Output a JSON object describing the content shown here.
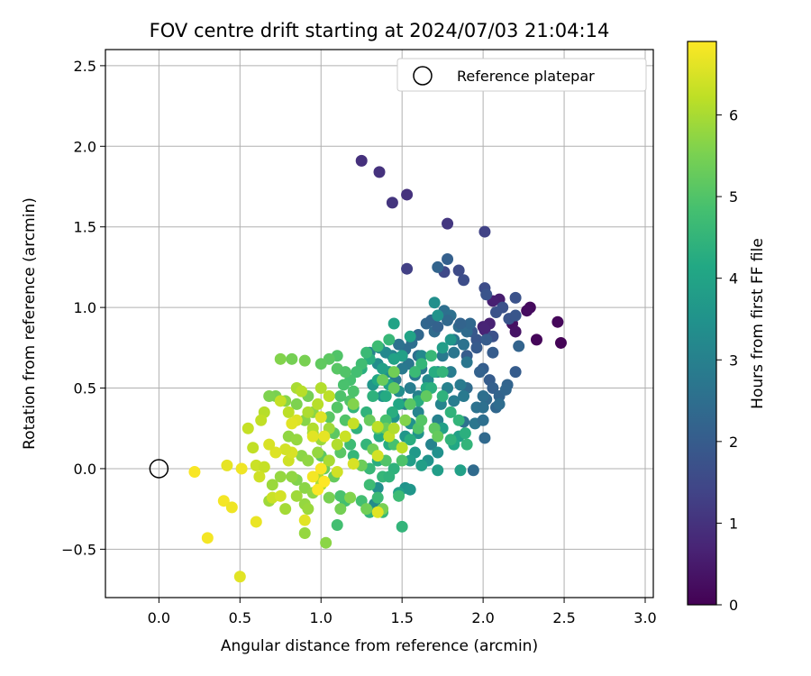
{
  "chart_data": {
    "type": "scatter",
    "title": "FOV centre drift starting at 2024/07/03 21:04:14",
    "xlabel": "Angular distance from reference (arcmin)",
    "ylabel": "Rotation from reference (arcmin)",
    "xlim": [
      -0.33,
      3.05
    ],
    "ylim": [
      -0.8,
      2.6
    ],
    "x_ticks": [
      0.0,
      0.5,
      1.0,
      1.5,
      2.0,
      2.5,
      3.0
    ],
    "x_tick_labels": [
      "0.0",
      "0.5",
      "1.0",
      "1.5",
      "2.0",
      "2.5",
      "3.0"
    ],
    "y_ticks": [
      -0.5,
      0.0,
      0.5,
      1.0,
      1.5,
      2.0,
      2.5
    ],
    "y_tick_labels": [
      "−0.5",
      "0.0",
      "0.5",
      "1.0",
      "1.5",
      "2.0",
      "2.5"
    ],
    "grid": true,
    "legend": {
      "placement": "top-right",
      "entries": [
        {
          "label": "Reference platepar",
          "marker": "open-circle"
        }
      ]
    },
    "reference_point": {
      "x": 0.0,
      "y": 0.0
    },
    "colorbar": {
      "label": "Hours from first FF file",
      "range": [
        0,
        6.9
      ],
      "ticks": [
        0,
        1,
        2,
        3,
        4,
        5,
        6
      ],
      "tick_labels": [
        "0",
        "1",
        "2",
        "3",
        "4",
        "5",
        "6"
      ],
      "colormap": "viridis"
    },
    "points": [
      [
        2.48,
        0.78,
        0.05
      ],
      [
        2.33,
        0.8,
        0.1
      ],
      [
        2.46,
        0.91,
        0.12
      ],
      [
        2.29,
        1.0,
        0.18
      ],
      [
        2.27,
        0.98,
        0.22
      ],
      [
        2.18,
        0.9,
        0.3
      ],
      [
        2.2,
        0.85,
        0.35
      ],
      [
        2.1,
        1.05,
        0.55
      ],
      [
        2.06,
        1.04,
        0.6
      ],
      [
        2.04,
        0.9,
        0.65
      ],
      [
        2.0,
        0.88,
        0.7
      ],
      [
        2.01,
        0.86,
        0.72
      ],
      [
        1.25,
        1.91,
        0.95
      ],
      [
        1.36,
        1.84,
        1.0
      ],
      [
        1.53,
        1.7,
        1.0
      ],
      [
        1.44,
        1.65,
        1.05
      ],
      [
        1.78,
        1.52,
        1.1
      ],
      [
        1.53,
        1.24,
        1.3
      ],
      [
        2.01,
        1.47,
        1.35
      ],
      [
        1.76,
        1.22,
        1.5
      ],
      [
        1.85,
        1.23,
        1.55
      ],
      [
        1.88,
        1.17,
        1.6
      ],
      [
        2.01,
        1.12,
        1.6
      ],
      [
        2.12,
        1.0,
        1.7
      ],
      [
        2.2,
        1.06,
        1.75
      ],
      [
        2.02,
        1.08,
        1.8
      ],
      [
        2.08,
        0.97,
        1.75
      ],
      [
        2.16,
        0.93,
        1.8
      ],
      [
        2.2,
        0.95,
        1.85
      ],
      [
        2.06,
        0.82,
        1.7
      ],
      [
        1.96,
        0.8,
        1.85
      ],
      [
        1.93,
        0.85,
        1.9
      ],
      [
        2.02,
        0.8,
        2.0
      ],
      [
        1.96,
        0.75,
        1.95
      ],
      [
        2.06,
        0.72,
        2.0
      ],
      [
        1.9,
        0.7,
        2.0
      ],
      [
        2.0,
        0.62,
        2.05
      ],
      [
        2.04,
        0.55,
        2.0
      ],
      [
        2.06,
        0.5,
        2.1
      ],
      [
        2.2,
        0.6,
        2.0
      ],
      [
        2.1,
        0.45,
        2.2
      ],
      [
        2.15,
        0.52,
        2.2
      ],
      [
        2.08,
        0.38,
        2.3
      ],
      [
        2.02,
        0.43,
        2.35
      ],
      [
        2.22,
        0.76,
        2.2
      ],
      [
        2.14,
        0.49,
        2.25
      ],
      [
        1.98,
        0.6,
        2.15
      ],
      [
        2.0,
        0.45,
        2.5
      ],
      [
        1.9,
        0.5,
        2.4
      ],
      [
        1.96,
        0.38,
        2.6
      ],
      [
        1.95,
        0.28,
        2.7
      ],
      [
        1.88,
        0.29,
        2.6
      ],
      [
        2.0,
        0.3,
        2.5
      ],
      [
        1.94,
        -0.01,
        2.4
      ],
      [
        2.01,
        0.19,
        2.35
      ],
      [
        2.0,
        0.38,
        2.55
      ],
      [
        2.1,
        0.4,
        2.45
      ],
      [
        1.78,
        1.3,
        2.1
      ],
      [
        1.72,
        1.25,
        2.2
      ],
      [
        1.65,
        0.9,
        2.25
      ],
      [
        1.6,
        0.83,
        2.3
      ],
      [
        1.68,
        0.92,
        2.2
      ],
      [
        1.7,
        0.85,
        2.4
      ],
      [
        1.56,
        0.78,
        2.5
      ],
      [
        1.6,
        0.7,
        2.55
      ],
      [
        1.52,
        0.74,
        2.45
      ],
      [
        1.48,
        0.77,
        2.6
      ],
      [
        1.54,
        0.65,
        2.7
      ],
      [
        1.62,
        0.62,
        2.75
      ],
      [
        1.58,
        0.58,
        2.8
      ],
      [
        1.5,
        0.62,
        2.8
      ],
      [
        1.46,
        0.55,
        2.9
      ],
      [
        1.55,
        0.5,
        2.9
      ],
      [
        1.6,
        0.45,
        3.0
      ],
      [
        1.52,
        0.4,
        2.95
      ],
      [
        1.6,
        0.35,
        3.1
      ],
      [
        1.72,
        0.3,
        3.0
      ],
      [
        1.68,
        0.15,
        3.05
      ],
      [
        1.74,
        0.4,
        3.1
      ],
      [
        1.8,
        0.6,
        2.9
      ],
      [
        1.75,
        0.7,
        2.8
      ],
      [
        1.82,
        0.72,
        2.7
      ],
      [
        1.82,
        0.8,
        2.65
      ],
      [
        1.88,
        0.77,
        2.6
      ],
      [
        1.76,
        0.98,
        2.5
      ],
      [
        1.8,
        0.95,
        2.55
      ],
      [
        1.85,
        0.88,
        2.45
      ],
      [
        1.9,
        0.85,
        2.4
      ],
      [
        1.92,
        0.9,
        2.3
      ],
      [
        1.86,
        0.9,
        2.2
      ],
      [
        1.78,
        0.92,
        2.35
      ],
      [
        1.72,
        0.88,
        2.15
      ],
      [
        1.9,
        0.66,
        2.7
      ],
      [
        1.86,
        0.52,
        2.85
      ],
      [
        1.82,
        0.42,
        2.9
      ],
      [
        1.88,
        0.45,
        2.8
      ],
      [
        1.78,
        0.5,
        3.0
      ],
      [
        1.72,
        0.6,
        3.1
      ],
      [
        1.66,
        0.55,
        3.2
      ],
      [
        1.62,
        0.7,
        3.2
      ],
      [
        1.44,
        0.7,
        3.1
      ],
      [
        1.4,
        0.72,
        3.2
      ],
      [
        1.36,
        0.75,
        3.3
      ],
      [
        1.3,
        0.72,
        3.1
      ],
      [
        1.35,
        0.65,
        3.35
      ],
      [
        1.42,
        0.6,
        3.4
      ],
      [
        1.48,
        0.48,
        3.35
      ],
      [
        1.38,
        0.45,
        3.5
      ],
      [
        1.32,
        0.52,
        3.6
      ],
      [
        1.45,
        0.32,
        3.5
      ],
      [
        1.55,
        0.28,
        3.45
      ],
      [
        1.52,
        0.2,
        3.6
      ],
      [
        1.6,
        0.22,
        3.55
      ],
      [
        1.66,
        0.05,
        3.5
      ],
      [
        1.72,
        0.1,
        3.45
      ],
      [
        1.58,
        0.1,
        3.7
      ],
      [
        1.72,
        -0.01,
        3.8
      ],
      [
        1.55,
        0.05,
        3.8
      ],
      [
        1.62,
        0.02,
        3.85
      ],
      [
        1.52,
        -0.12,
        3.5
      ],
      [
        1.48,
        -0.15,
        3.9
      ],
      [
        1.35,
        -0.12,
        3.4
      ],
      [
        1.33,
        -0.22,
        3.3
      ],
      [
        1.55,
        -0.13,
        3.6
      ],
      [
        1.86,
        -0.01,
        3.9
      ],
      [
        1.85,
        0.2,
        3.9
      ],
      [
        1.82,
        0.15,
        4.1
      ],
      [
        1.75,
        0.25,
        3.9
      ],
      [
        1.7,
        1.03,
        3.4
      ],
      [
        1.72,
        0.95,
        3.5
      ],
      [
        1.8,
        0.8,
        3.6
      ],
      [
        1.75,
        0.75,
        3.8
      ],
      [
        1.45,
        0.9,
        4.0
      ],
      [
        1.55,
        0.82,
        4.0
      ],
      [
        1.5,
        0.7,
        3.9
      ],
      [
        1.45,
        0.68,
        3.95
      ],
      [
        1.38,
        0.62,
        3.9
      ],
      [
        1.42,
        0.52,
        4.0
      ],
      [
        1.35,
        0.55,
        4.1
      ],
      [
        1.4,
        0.45,
        4.2
      ],
      [
        1.48,
        0.4,
        4.1
      ],
      [
        1.44,
        0.35,
        4.3
      ],
      [
        1.36,
        0.2,
        4.2
      ],
      [
        1.42,
        0.15,
        4.25
      ],
      [
        1.35,
        0.05,
        4.3
      ],
      [
        1.45,
        0.0,
        4.4
      ],
      [
        1.6,
        0.42,
        4.3
      ],
      [
        1.65,
        0.5,
        4.2
      ],
      [
        1.7,
        0.6,
        4.25
      ],
      [
        1.3,
        0.68,
        4.3
      ],
      [
        1.25,
        0.62,
        4.35
      ],
      [
        1.32,
        0.45,
        4.4
      ],
      [
        1.28,
        0.35,
        4.45
      ],
      [
        1.2,
        0.38,
        4.5
      ],
      [
        1.22,
        0.25,
        4.4
      ],
      [
        1.28,
        0.15,
        4.5
      ],
      [
        1.2,
        0.08,
        4.55
      ],
      [
        1.25,
        0.02,
        4.6
      ],
      [
        1.18,
        0.15,
        4.7
      ],
      [
        1.3,
        0.0,
        4.6
      ],
      [
        1.38,
        -0.05,
        4.55
      ],
      [
        1.42,
        -0.05,
        4.45
      ],
      [
        1.3,
        -0.1,
        4.7
      ],
      [
        1.35,
        -0.18,
        4.65
      ],
      [
        1.25,
        -0.2,
        4.8
      ],
      [
        1.15,
        -0.2,
        4.8
      ],
      [
        1.12,
        -0.17,
        4.9
      ],
      [
        1.1,
        -0.35,
        4.8
      ],
      [
        1.3,
        -0.27,
        4.5
      ],
      [
        1.38,
        -0.27,
        4.6
      ],
      [
        1.5,
        -0.36,
        4.5
      ],
      [
        1.48,
        -0.17,
        4.7
      ],
      [
        1.55,
        0.18,
        4.3
      ],
      [
        1.68,
        0.5,
        4.35
      ],
      [
        1.75,
        0.45,
        4.4
      ],
      [
        1.8,
        0.35,
        4.45
      ],
      [
        1.85,
        0.3,
        4.5
      ],
      [
        1.8,
        0.18,
        4.45
      ],
      [
        1.89,
        0.22,
        4.35
      ],
      [
        1.9,
        0.15,
        4.5
      ],
      [
        1.75,
        0.6,
        4.5
      ],
      [
        1.68,
        0.7,
        4.6
      ],
      [
        1.62,
        0.65,
        4.55
      ],
      [
        1.58,
        0.6,
        4.65
      ],
      [
        1.42,
        0.8,
        4.6
      ],
      [
        1.35,
        0.76,
        4.7
      ],
      [
        1.28,
        0.72,
        4.65
      ],
      [
        1.25,
        0.65,
        4.75
      ],
      [
        1.22,
        0.6,
        4.8
      ],
      [
        1.18,
        0.55,
        4.85
      ],
      [
        1.14,
        0.52,
        4.9
      ],
      [
        1.12,
        0.45,
        4.95
      ],
      [
        1.18,
        0.42,
        5.0
      ],
      [
        1.1,
        0.38,
        5.05
      ],
      [
        1.05,
        0.32,
        5.1
      ],
      [
        1.15,
        0.3,
        5.0
      ],
      [
        1.08,
        0.22,
        5.15
      ],
      [
        1.12,
        0.1,
        5.1
      ],
      [
        1.05,
        0.05,
        5.2
      ],
      [
        1.0,
        0.08,
        5.15
      ],
      [
        1.08,
        -0.05,
        5.25
      ],
      [
        1.02,
        0.0,
        5.3
      ],
      [
        1.1,
        0.7,
        5.0
      ],
      [
        1.1,
        0.62,
        5.1
      ],
      [
        1.05,
        0.68,
        5.15
      ],
      [
        1.0,
        0.65,
        5.2
      ],
      [
        1.15,
        0.6,
        5.0
      ],
      [
        1.2,
        0.48,
        4.95
      ],
      [
        1.4,
        0.3,
        4.9
      ],
      [
        1.45,
        0.15,
        4.85
      ],
      [
        1.5,
        0.05,
        4.95
      ],
      [
        1.4,
        0.05,
        5.0
      ],
      [
        1.35,
        0.25,
        5.1
      ],
      [
        1.6,
        0.25,
        5.0
      ],
      [
        1.62,
        0.3,
        5.05
      ],
      [
        1.55,
        0.4,
        5.1
      ],
      [
        1.65,
        0.45,
        5.2
      ],
      [
        1.7,
        0.25,
        5.15
      ],
      [
        1.72,
        0.2,
        5.25
      ],
      [
        1.45,
        0.5,
        5.25
      ],
      [
        1.38,
        0.55,
        5.3
      ],
      [
        1.4,
        0.25,
        5.35
      ],
      [
        1.3,
        0.3,
        5.3
      ],
      [
        1.32,
        0.12,
        5.4
      ],
      [
        1.25,
        0.02,
        5.35
      ],
      [
        1.28,
        -0.25,
        5.4
      ],
      [
        1.38,
        -0.25,
        5.5
      ],
      [
        0.9,
        0.67,
        5.5
      ],
      [
        0.82,
        0.68,
        5.45
      ],
      [
        0.75,
        0.68,
        5.6
      ],
      [
        0.72,
        0.45,
        5.5
      ],
      [
        0.68,
        0.45,
        5.55
      ],
      [
        0.78,
        0.42,
        5.65
      ],
      [
        0.85,
        0.4,
        5.55
      ],
      [
        0.92,
        0.45,
        5.45
      ],
      [
        0.95,
        0.35,
        5.7
      ],
      [
        0.9,
        0.3,
        5.65
      ],
      [
        0.8,
        0.2,
        5.75
      ],
      [
        0.85,
        0.18,
        5.8
      ],
      [
        0.88,
        0.08,
        5.7
      ],
      [
        0.92,
        0.05,
        5.75
      ],
      [
        0.98,
        0.1,
        5.8
      ],
      [
        1.0,
        0.18,
        5.85
      ],
      [
        1.05,
        0.25,
        5.9
      ],
      [
        0.95,
        0.22,
        5.9
      ],
      [
        0.9,
        -0.12,
        5.7
      ],
      [
        0.95,
        -0.15,
        5.75
      ],
      [
        0.85,
        -0.07,
        5.6
      ],
      [
        0.82,
        -0.05,
        5.75
      ],
      [
        0.75,
        -0.05,
        5.8
      ],
      [
        0.7,
        -0.1,
        5.85
      ],
      [
        0.68,
        -0.2,
        5.9
      ],
      [
        0.78,
        -0.25,
        5.95
      ],
      [
        0.85,
        -0.17,
        5.9
      ],
      [
        0.9,
        -0.22,
        5.8
      ],
      [
        0.92,
        -0.25,
        5.85
      ],
      [
        0.9,
        -0.4,
        5.8
      ],
      [
        1.03,
        -0.46,
        5.7
      ],
      [
        1.0,
        -0.1,
        6.0
      ],
      [
        0.98,
        -0.05,
        6.05
      ],
      [
        1.05,
        0.05,
        6.0
      ],
      [
        1.1,
        0.15,
        6.1
      ],
      [
        0.95,
        0.25,
        6.1
      ],
      [
        0.92,
        0.35,
        6.05
      ],
      [
        0.98,
        0.4,
        6.15
      ],
      [
        1.0,
        0.5,
        6.1
      ],
      [
        1.05,
        0.45,
        6.2
      ],
      [
        0.85,
        0.5,
        6.0
      ],
      [
        0.88,
        0.48,
        6.15
      ],
      [
        0.8,
        0.35,
        6.2
      ],
      [
        0.75,
        0.42,
        6.3
      ],
      [
        0.65,
        0.35,
        6.15
      ],
      [
        0.63,
        0.3,
        6.25
      ],
      [
        0.55,
        0.25,
        6.3
      ],
      [
        0.58,
        0.13,
        6.25
      ],
      [
        0.6,
        0.02,
        6.35
      ],
      [
        0.65,
        0.01,
        6.3
      ],
      [
        0.62,
        -0.05,
        6.4
      ],
      [
        0.7,
        -0.18,
        6.35
      ],
      [
        0.75,
        -0.17,
        6.45
      ],
      [
        0.8,
        0.05,
        6.4
      ],
      [
        0.82,
        0.1,
        6.5
      ],
      [
        0.78,
        0.12,
        6.45
      ],
      [
        0.72,
        0.1,
        6.55
      ],
      [
        0.68,
        0.15,
        6.5
      ],
      [
        0.85,
        0.3,
        6.55
      ],
      [
        0.82,
        0.28,
        6.6
      ],
      [
        0.95,
        0.2,
        6.6
      ],
      [
        1.0,
        0.32,
        6.55
      ],
      [
        1.02,
        0.2,
        6.65
      ],
      [
        0.9,
        -0.32,
        6.6
      ],
      [
        0.6,
        -0.33,
        6.7
      ],
      [
        0.5,
        -0.67,
        6.6
      ],
      [
        0.42,
        0.02,
        6.65
      ],
      [
        0.51,
        0.0,
        6.75
      ],
      [
        0.4,
        -0.2,
        6.8
      ],
      [
        0.45,
        -0.24,
        6.75
      ],
      [
        0.3,
        -0.43,
        6.8
      ],
      [
        0.22,
        -0.02,
        6.85
      ],
      [
        0.95,
        -0.05,
        6.8
      ],
      [
        1.0,
        0.0,
        6.85
      ],
      [
        1.02,
        -0.08,
        6.9
      ],
      [
        0.98,
        -0.13,
        6.88
      ],
      [
        1.35,
        0.26,
        6.2
      ],
      [
        1.42,
        0.2,
        6.25
      ],
      [
        1.2,
        0.28,
        6.3
      ],
      [
        1.15,
        0.2,
        6.35
      ],
      [
        1.1,
        -0.02,
        6.4
      ],
      [
        1.2,
        0.03,
        6.5
      ],
      [
        1.35,
        -0.27,
        6.6
      ],
      [
        1.35,
        0.08,
        6.45
      ],
      [
        1.45,
        0.25,
        6.1
      ],
      [
        1.5,
        0.13,
        6.2
      ],
      [
        1.18,
        -0.18,
        5.6
      ],
      [
        1.05,
        -0.18,
        5.5
      ],
      [
        1.12,
        -0.25,
        5.45
      ],
      [
        1.45,
        0.6,
        5.4
      ],
      [
        1.2,
        0.4,
        5.6
      ],
      [
        1.52,
        0.3,
        5.6
      ]
    ]
  }
}
